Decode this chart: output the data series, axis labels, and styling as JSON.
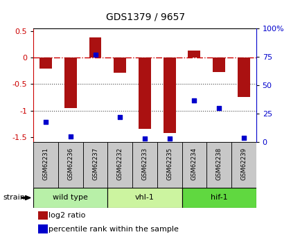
{
  "title": "GDS1379 / 9657",
  "samples": [
    "GSM62231",
    "GSM62236",
    "GSM62237",
    "GSM62232",
    "GSM62233",
    "GSM62235",
    "GSM62234",
    "GSM62238",
    "GSM62239"
  ],
  "log2_ratio": [
    -0.2,
    -0.95,
    0.38,
    -0.28,
    -1.35,
    -1.42,
    0.14,
    -0.27,
    -0.75
  ],
  "percentile_rank": [
    18,
    5,
    77,
    22,
    3,
    3,
    37,
    30,
    4
  ],
  "groups": [
    {
      "label": "wild type",
      "indices": [
        0,
        1,
        2
      ],
      "color": "#b8f0a8"
    },
    {
      "label": "vhl-1",
      "indices": [
        3,
        4,
        5
      ],
      "color": "#ccf4a0"
    },
    {
      "label": "hif-1",
      "indices": [
        6,
        7,
        8
      ],
      "color": "#60d840"
    }
  ],
  "ylim_left": [
    -1.6,
    0.55
  ],
  "ylim_right": [
    0,
    100
  ],
  "bar_color": "#aa1111",
  "dot_color": "#0000cc",
  "hline_color": "#cc0000",
  "dotted_line_color": "#444444",
  "strain_label": "strain",
  "legend_bar": "log2 ratio",
  "legend_dot": "percentile rank within the sample",
  "background_color": "#ffffff",
  "plot_bg": "#ffffff",
  "sample_bg": "#c8c8c8"
}
